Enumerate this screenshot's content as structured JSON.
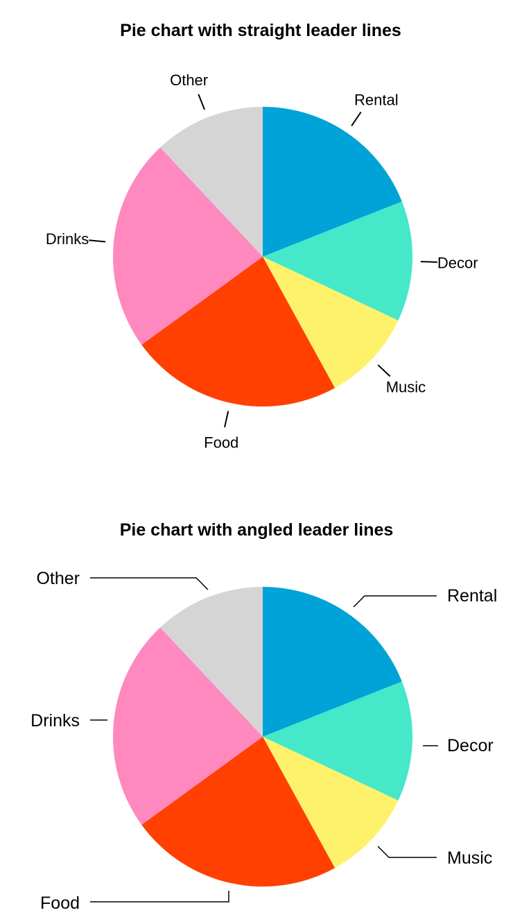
{
  "chart_data": [
    {
      "type": "pie",
      "title": "Pie chart with straight leader lines",
      "categories": [
        "Rental",
        "Decor",
        "Music",
        "Food",
        "Drinks",
        "Other"
      ],
      "values": [
        19,
        13,
        10,
        23,
        23,
        12
      ],
      "colors": [
        "#00A3D8",
        "#45E8C8",
        "#FFF26B",
        "#FF4000",
        "#FF88BF",
        "#D5D5D5"
      ],
      "leader_style": "straight",
      "start": "12 o'clock, clockwise"
    },
    {
      "type": "pie",
      "title": "Pie chart with angled leader lines",
      "categories": [
        "Rental",
        "Decor",
        "Music",
        "Food",
        "Drinks",
        "Other"
      ],
      "values": [
        19,
        13,
        10,
        23,
        23,
        12
      ],
      "colors": [
        "#00A3D8",
        "#45E8C8",
        "#FFF26B",
        "#FF4000",
        "#FF88BF",
        "#D5D5D5"
      ],
      "leader_style": "angled",
      "start": "12 o'clock, clockwise"
    }
  ]
}
